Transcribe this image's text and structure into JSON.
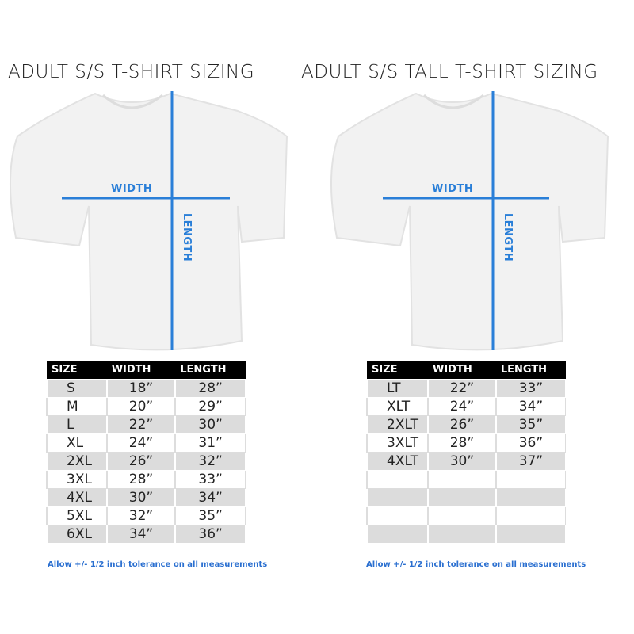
{
  "accent_color": "#2a7fd8",
  "left": {
    "title": "ADULT S/S T-SHIRT SIZING",
    "width_label": "WIDTH",
    "length_label": "LENGTH",
    "headers": [
      "SIZE",
      "WIDTH",
      "LENGTH"
    ],
    "rows": [
      [
        "S",
        "18”",
        "28”"
      ],
      [
        "M",
        "20”",
        "29”"
      ],
      [
        "L",
        "22”",
        "30”"
      ],
      [
        "XL",
        "24”",
        "31”"
      ],
      [
        "2XL",
        "26”",
        "32”"
      ],
      [
        "3XL",
        "28”",
        "33”"
      ],
      [
        "4XL",
        "30”",
        "34”"
      ],
      [
        "5XL",
        "32”",
        "35”"
      ],
      [
        "6XL",
        "34”",
        "36”"
      ]
    ],
    "note": "Allow +/- 1/2 inch tolerance on all measurements"
  },
  "right": {
    "title": "ADULT S/S TALL T-SHIRT SIZING",
    "width_label": "WIDTH",
    "length_label": "LENGTH",
    "headers": [
      "SIZE",
      "WIDTH",
      "LENGTH"
    ],
    "rows": [
      [
        "LT",
        "22”",
        "33”"
      ],
      [
        "XLT",
        "24”",
        "34”"
      ],
      [
        "2XLT",
        "26”",
        "35”"
      ],
      [
        "3XLT",
        "28”",
        "36”"
      ],
      [
        "4XLT",
        "30”",
        "37”"
      ],
      [
        "",
        "",
        ""
      ],
      [
        "",
        "",
        ""
      ],
      [
        "",
        "",
        ""
      ],
      [
        "",
        "",
        ""
      ]
    ],
    "note": "Allow +/- 1/2 inch tolerance on all measurements"
  }
}
